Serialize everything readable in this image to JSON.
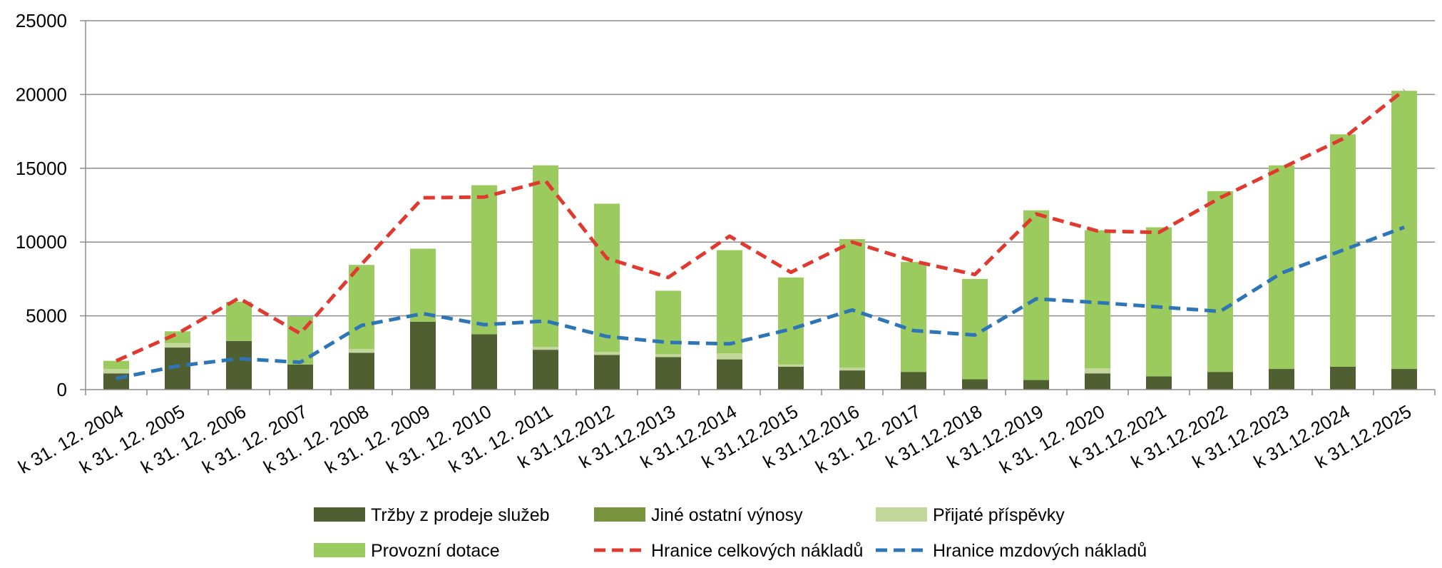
{
  "chart_data": {
    "type": "bar",
    "stacked": true,
    "ylim": [
      0,
      25000
    ],
    "yticks": [
      0,
      5000,
      10000,
      15000,
      20000,
      25000
    ],
    "grid": true,
    "legend_position": "bottom",
    "categories": [
      "k 31. 12. 2004",
      "k 31. 12. 2005",
      "k 31. 12. 2006",
      "k 31. 12. 2007",
      "k 31. 12. 2008",
      "k 31. 12. 2009",
      "k 31. 12. 2010",
      "k 31. 12. 2011",
      "k 31.12.2012",
      "k 31.12.2013",
      "k 31.12.2014",
      "k 31.12.2015",
      "k 31.12.2016",
      "k 31. 12. 2017",
      "k 31.12.2018",
      "k 31.12.2019",
      "k 31. 12. 2020",
      "k 31.12.2021",
      "k 31.12.2022",
      "k 31.12.2023",
      "k 31.12.2024",
      "k 31.12.2025"
    ],
    "bar_series": [
      {
        "name": "Tržby z prodeje služeb",
        "color": "#4f5f31",
        "values": [
          1100,
          2850,
          3300,
          1700,
          2500,
          4600,
          3750,
          2700,
          2350,
          2200,
          2050,
          1550,
          1300,
          1200,
          700,
          650,
          1100,
          900,
          1200,
          1400,
          1550,
          1400
        ]
      },
      {
        "name": "Jiné ostatní výnosy",
        "color": "#77933c",
        "values": [
          0,
          0,
          0,
          0,
          0,
          0,
          0,
          0,
          0,
          0,
          0,
          0,
          0,
          0,
          0,
          0,
          0,
          0,
          0,
          0,
          0,
          0
        ]
      },
      {
        "name": "Přijaté příspěvky",
        "color": "#c4d79b",
        "values": [
          300,
          300,
          0,
          0,
          250,
          0,
          0,
          200,
          200,
          200,
          400,
          150,
          200,
          0,
          0,
          0,
          350,
          0,
          0,
          0,
          0,
          0
        ]
      },
      {
        "name": "Provozní dotace",
        "color": "#9bcb5f",
        "values": [
          550,
          800,
          2650,
          3250,
          5700,
          4950,
          10100,
          12300,
          10050,
          4300,
          7000,
          5900,
          8700,
          7450,
          6800,
          11500,
          9350,
          10100,
          12250,
          13800,
          15750,
          18850
        ]
      }
    ],
    "line_series": [
      {
        "name": "Hranice celkových nákladů",
        "color": "#e03a30",
        "values": [
          1950,
          3800,
          6200,
          3800,
          8500,
          13000,
          13050,
          14150,
          8900,
          7600,
          10400,
          7950,
          10000,
          8700,
          7800,
          11900,
          10750,
          10650,
          13000,
          15000,
          17000,
          20300
        ]
      },
      {
        "name": "Hranice mzdových nákladů",
        "color": "#2e75b6",
        "values": [
          750,
          1600,
          2100,
          1850,
          4350,
          5150,
          4400,
          4650,
          3600,
          3200,
          3100,
          4100,
          5400,
          4000,
          3700,
          6150,
          5900,
          5600,
          5300,
          7900,
          9450,
          11000
        ]
      }
    ]
  }
}
